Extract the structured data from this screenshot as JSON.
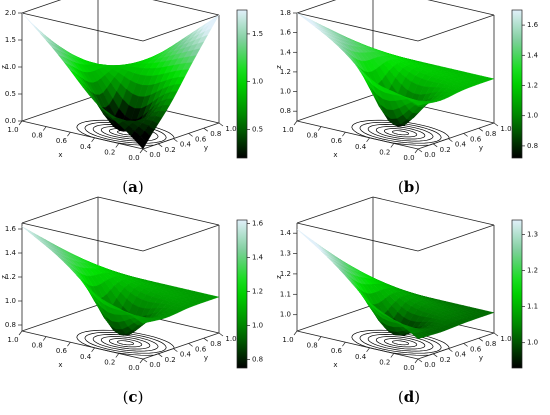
{
  "chart_data": [
    {
      "type": "surface",
      "panel": "a",
      "caption": {
        "open": "(",
        "letter": "a",
        "close": ")"
      },
      "xlabel": "x",
      "ylabel": "y",
      "zlabel": "z",
      "x_ticks": [
        "1.0",
        "0.8",
        "0.6",
        "0.4",
        "0.2",
        "0.0"
      ],
      "y_ticks": [
        "0.0",
        "0.2",
        "0.4",
        "0.6",
        "0.8",
        "1.0"
      ],
      "z_ticks": [
        "0.0",
        "0.5",
        "1.0",
        "1.5",
        "2.0"
      ],
      "zlim": [
        0,
        2
      ],
      "colorbar_ticks": [
        0.5,
        1.0,
        1.5
      ],
      "colorbar_labels": [
        "0.5",
        "1.0",
        "1.5"
      ],
      "colorbar_range": [
        0.2,
        1.75
      ],
      "surface": {
        "corner_00": 0.0,
        "corner_10": 2.0,
        "corner_01": 2.0,
        "corner_11": 0.0,
        "min_value": 0.0
      }
    },
    {
      "type": "surface",
      "panel": "b",
      "caption": {
        "open": "(",
        "letter": "b",
        "close": ")"
      },
      "xlabel": "x",
      "ylabel": "y",
      "zlabel": "z",
      "x_ticks": [
        "1.0",
        "0.8",
        "0.6",
        "0.4",
        "0.2",
        "0.0"
      ],
      "y_ticks": [
        "0.0",
        "0.2",
        "0.4",
        "0.6",
        "0.8",
        "1.0"
      ],
      "z_ticks": [
        "0.8",
        "1.0",
        "1.2",
        "1.4",
        "1.6",
        "1.8"
      ],
      "zlim": [
        0.7,
        1.8
      ],
      "colorbar_ticks": [
        0.8,
        1.0,
        1.2,
        1.4,
        1.6
      ],
      "colorbar_labels": [
        "0.8",
        "1.0",
        "1.2",
        "1.4",
        "1.6"
      ],
      "colorbar_range": [
        0.72,
        1.7
      ],
      "surface": {
        "corner_00": 1.15,
        "corner_10": 1.8,
        "corner_01": 1.15,
        "corner_11": 1.15,
        "min_value": 0.75
      }
    },
    {
      "type": "surface",
      "panel": "c",
      "caption": {
        "open": "(",
        "letter": "c",
        "close": ")"
      },
      "xlabel": "x",
      "ylabel": "y",
      "zlabel": "z",
      "x_ticks": [
        "1.0",
        "0.8",
        "0.6",
        "0.4",
        "0.2",
        "0.0"
      ],
      "y_ticks": [
        "0.0",
        "0.2",
        "0.4",
        "0.6",
        "0.8",
        "1.0"
      ],
      "z_ticks": [
        "0.8",
        "1.0",
        "1.2",
        "1.4",
        "1.6"
      ],
      "zlim": [
        0.75,
        1.65
      ],
      "colorbar_ticks": [
        0.8,
        1.0,
        1.2,
        1.4,
        1.6
      ],
      "colorbar_labels": [
        "0.8",
        "1.0",
        "1.2",
        "1.4",
        "1.6"
      ],
      "colorbar_range": [
        0.75,
        1.62
      ],
      "surface": {
        "corner_00": 1.05,
        "corner_10": 1.62,
        "corner_01": 1.05,
        "corner_11": 1.05,
        "min_value": 0.8
      }
    },
    {
      "type": "surface",
      "panel": "d",
      "caption": {
        "open": "(",
        "letter": "d",
        "close": ")"
      },
      "xlabel": "x",
      "ylabel": "y",
      "zlabel": "z",
      "x_ticks": [
        "1.0",
        "0.8",
        "0.6",
        "0.4",
        "0.2",
        "0.0"
      ],
      "y_ticks": [
        "0.0",
        "0.2",
        "0.4",
        "0.6",
        "0.8",
        "1.0"
      ],
      "z_ticks": [
        "1.0",
        "1.1",
        "1.2",
        "1.3",
        "1.4"
      ],
      "zlim": [
        0.92,
        1.45
      ],
      "colorbar_ticks": [
        1.0,
        1.1,
        1.2,
        1.3
      ],
      "colorbar_labels": [
        "1.0",
        "1.1",
        "1.2",
        "1.3"
      ],
      "colorbar_range": [
        0.93,
        1.34
      ],
      "surface": {
        "corner_00": 1.02,
        "corner_10": 1.42,
        "corner_01": 1.02,
        "corner_11": 1.02,
        "min_value": 0.95
      }
    }
  ]
}
